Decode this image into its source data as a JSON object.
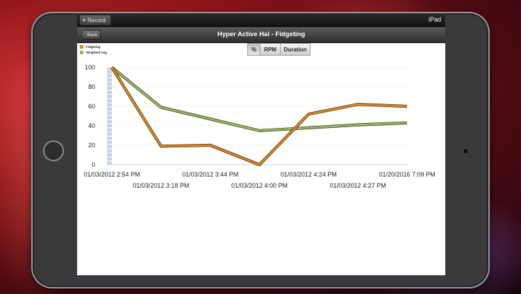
{
  "device": {
    "status_title": "iPad"
  },
  "statusbar": {
    "record_label": "Record"
  },
  "navbar": {
    "back_label": "Back",
    "title": "Hyper Active Hal - Fidgeting"
  },
  "segmented": {
    "options": [
      "%",
      "RPM",
      "Duration"
    ],
    "selected": "%"
  },
  "colors": {
    "fidgeting": "#d9871f",
    "weighted_avg": "#9bb45a",
    "bar": "#c5d3e6"
  },
  "chart_data": {
    "type": "line",
    "x": [
      "01/03/2012 2:54 PM",
      "01/03/2012 3:18 PM",
      "01/03/2012 3:44 PM",
      "01/03/2012 4:00 PM",
      "01/03/2012 4:24 PM",
      "01/03/2012 4:27 PM",
      "01/20/2016 7:09 PM"
    ],
    "series": [
      {
        "name": "Fidgeting",
        "values": [
          100,
          19,
          20,
          0,
          52,
          62,
          60
        ]
      },
      {
        "name": "Weighted Avg.",
        "values": [
          100,
          59,
          47,
          35,
          38,
          41,
          43
        ]
      }
    ],
    "yticks": [
      "100",
      "80",
      "60",
      "40",
      "20",
      "0"
    ],
    "ylim": [
      0,
      100
    ],
    "grid": true,
    "legend_position": "top-left"
  }
}
